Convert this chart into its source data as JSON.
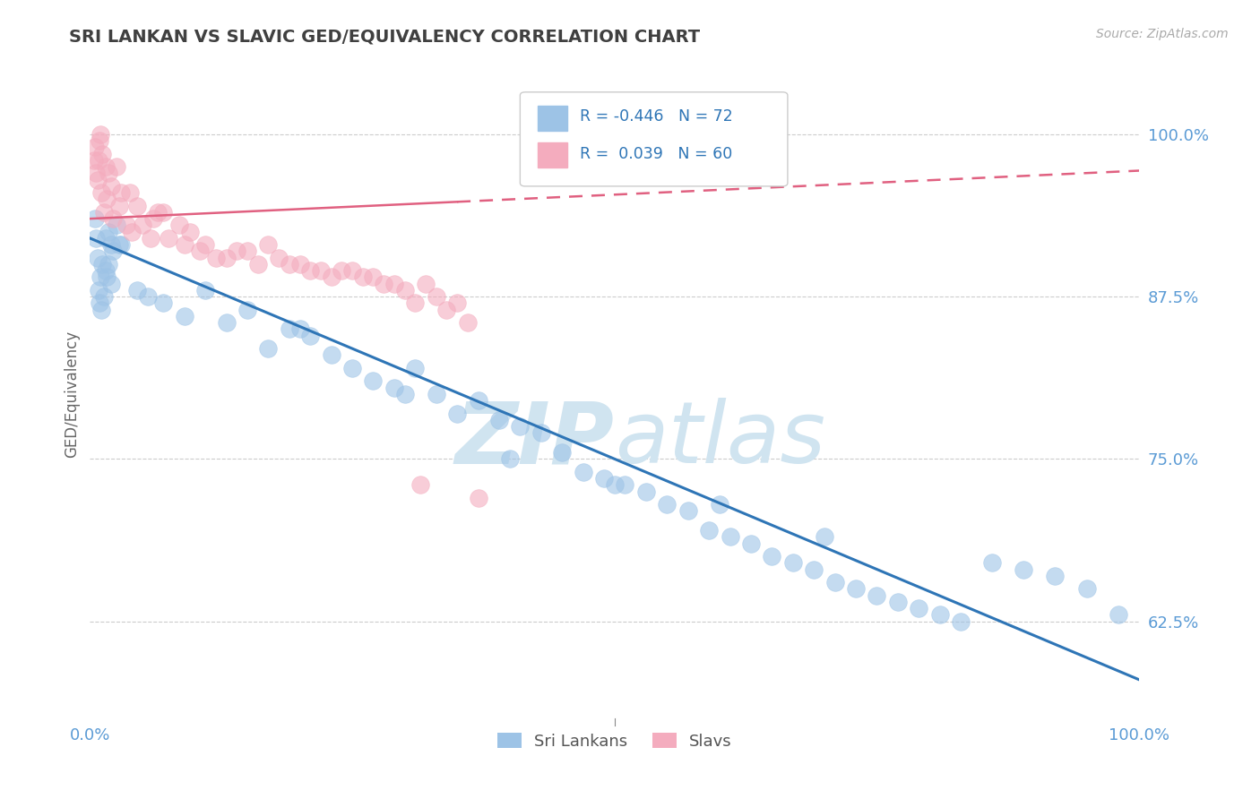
{
  "title": "SRI LANKAN VS SLAVIC GED/EQUIVALENCY CORRELATION CHART",
  "source": "Source: ZipAtlas.com",
  "ylabel": "GED/Equivalency",
  "yticks": [
    62.5,
    75.0,
    87.5,
    100.0
  ],
  "ytick_labels": [
    "62.5%",
    "75.0%",
    "87.5%",
    "100.0%"
  ],
  "xmin": 0.0,
  "xmax": 100.0,
  "ymin": 55.0,
  "ymax": 105.0,
  "blue_color": "#9dc3e6",
  "pink_color": "#f4acbe",
  "blue_line_color": "#2e75b6",
  "pink_line_color": "#e06080",
  "watermark_color": "#d0e4f0",
  "legend_label_blue": "Sri Lankans",
  "legend_label_pink": "Slavs",
  "blue_scatter_x": [
    1.5,
    2.0,
    1.8,
    2.5,
    1.2,
    1.0,
    3.0,
    0.8,
    1.5,
    2.0,
    1.3,
    1.8,
    2.2,
    0.9,
    1.6,
    2.8,
    1.1,
    0.5,
    0.6,
    0.7,
    4.5,
    5.5,
    7.0,
    9.0,
    11.0,
    13.0,
    15.0,
    17.0,
    19.0,
    21.0,
    23.0,
    25.0,
    27.0,
    29.0,
    31.0,
    33.0,
    35.0,
    37.0,
    39.0,
    41.0,
    43.0,
    45.0,
    47.0,
    49.0,
    51.0,
    53.0,
    55.0,
    57.0,
    59.0,
    61.0,
    63.0,
    65.0,
    67.0,
    69.0,
    71.0,
    73.0,
    75.0,
    77.0,
    79.0,
    81.0,
    83.0,
    86.0,
    89.0,
    92.0,
    95.0,
    98.0,
    20.0,
    30.0,
    40.0,
    50.0,
    60.0,
    70.0
  ],
  "blue_scatter_y": [
    92.0,
    91.5,
    92.5,
    93.0,
    90.0,
    89.0,
    91.5,
    88.0,
    89.5,
    88.5,
    87.5,
    90.0,
    91.0,
    87.0,
    89.0,
    91.5,
    86.5,
    93.5,
    92.0,
    90.5,
    88.0,
    87.5,
    87.0,
    86.0,
    88.0,
    85.5,
    86.5,
    83.5,
    85.0,
    84.5,
    83.0,
    82.0,
    81.0,
    80.5,
    82.0,
    80.0,
    78.5,
    79.5,
    78.0,
    77.5,
    77.0,
    75.5,
    74.0,
    73.5,
    73.0,
    72.5,
    71.5,
    71.0,
    69.5,
    69.0,
    68.5,
    67.5,
    67.0,
    66.5,
    65.5,
    65.0,
    64.5,
    64.0,
    63.5,
    63.0,
    62.5,
    67.0,
    66.5,
    66.0,
    65.0,
    63.0,
    85.0,
    80.0,
    75.0,
    73.0,
    71.5,
    69.0
  ],
  "pink_scatter_x": [
    0.5,
    1.0,
    1.2,
    1.5,
    0.8,
    1.8,
    2.0,
    2.5,
    3.0,
    1.3,
    0.9,
    2.2,
    1.6,
    3.5,
    4.0,
    2.8,
    0.4,
    0.6,
    0.7,
    1.1,
    5.0,
    6.0,
    7.5,
    9.0,
    10.5,
    12.0,
    14.0,
    16.0,
    18.0,
    20.0,
    22.0,
    23.0,
    24.0,
    26.0,
    28.0,
    30.0,
    32.0,
    33.0,
    35.0,
    7.0,
    8.5,
    4.5,
    11.0,
    13.0,
    17.0,
    25.0,
    27.0,
    29.0,
    6.5,
    3.8,
    15.0,
    19.0,
    21.0,
    31.0,
    34.0,
    36.0,
    9.5,
    5.8,
    31.5,
    37.0
  ],
  "pink_scatter_y": [
    99.0,
    100.0,
    98.5,
    97.5,
    98.0,
    97.0,
    96.0,
    97.5,
    95.5,
    94.0,
    99.5,
    93.5,
    95.0,
    93.0,
    92.5,
    94.5,
    98.0,
    97.0,
    96.5,
    95.5,
    93.0,
    93.5,
    92.0,
    91.5,
    91.0,
    90.5,
    91.0,
    90.0,
    90.5,
    90.0,
    89.5,
    89.0,
    89.5,
    89.0,
    88.5,
    88.0,
    88.5,
    87.5,
    87.0,
    94.0,
    93.0,
    94.5,
    91.5,
    90.5,
    91.5,
    89.5,
    89.0,
    88.5,
    94.0,
    95.5,
    91.0,
    90.0,
    89.5,
    87.0,
    86.5,
    85.5,
    92.5,
    92.0,
    73.0,
    72.0
  ],
  "blue_line_x0": 0.0,
  "blue_line_x1": 100.0,
  "blue_line_y0": 92.0,
  "blue_line_y1": 58.0,
  "pink_solid_x0": 0.0,
  "pink_solid_x1": 35.0,
  "pink_solid_y0": 93.5,
  "pink_solid_y1": 94.8,
  "pink_dash_x0": 35.0,
  "pink_dash_x1": 100.0,
  "pink_dash_y0": 94.8,
  "pink_dash_y1": 97.2,
  "grid_color": "#cccccc",
  "background_color": "#ffffff",
  "plot_bg_color": "#ffffff",
  "tick_color": "#5b9bd5",
  "title_color": "#404040",
  "ylabel_color": "#666666"
}
